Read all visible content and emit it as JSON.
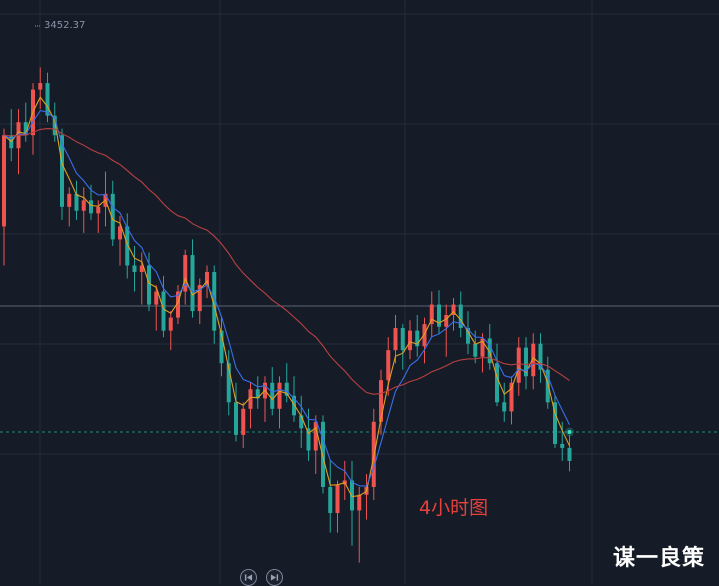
{
  "chart_data": {
    "type": "candlestick",
    "title": "",
    "annotations": {
      "peak_price": "3452.37",
      "timeframe": "4小时图"
    },
    "price_range": [
      3120,
      3470
    ],
    "grid": true,
    "colors": {
      "up": "#ef5350",
      "down": "#26a69a",
      "background": "#151c28",
      "grid": "#232b3a",
      "ma_short": "#e0a020",
      "ma_mid": "#3a6ee8",
      "ma_long": "#b84040",
      "crosshair": "#5a6374",
      "last_price_line": "#1e8a7a"
    },
    "series": [
      {
        "name": "",
        "color": "#e0a020",
        "values": []
      },
      {
        "name": "",
        "color": "#3a6ee8",
        "values": []
      },
      {
        "name": "",
        "color": "#b84040",
        "values": []
      }
    ],
    "candles": [
      [
        3330,
        3405,
        3300,
        3400
      ],
      [
        3400,
        3420,
        3380,
        3390
      ],
      [
        3390,
        3420,
        3370,
        3410
      ],
      [
        3410,
        3425,
        3395,
        3400
      ],
      [
        3400,
        3440,
        3385,
        3435
      ],
      [
        3435,
        3452,
        3420,
        3440
      ],
      [
        3440,
        3448,
        3410,
        3415
      ],
      [
        3415,
        3425,
        3395,
        3400
      ],
      [
        3400,
        3405,
        3335,
        3345
      ],
      [
        3345,
        3360,
        3330,
        3355
      ],
      [
        3355,
        3365,
        3335,
        3342
      ],
      [
        3342,
        3360,
        3325,
        3350
      ],
      [
        3350,
        3362,
        3335,
        3340
      ],
      [
        3340,
        3350,
        3325,
        3345
      ],
      [
        3345,
        3372,
        3330,
        3355
      ],
      [
        3355,
        3365,
        3315,
        3320
      ],
      [
        3320,
        3338,
        3300,
        3330
      ],
      [
        3330,
        3340,
        3290,
        3300
      ],
      [
        3300,
        3315,
        3280,
        3295
      ],
      [
        3295,
        3310,
        3270,
        3300
      ],
      [
        3300,
        3310,
        3265,
        3270
      ],
      [
        3270,
        3285,
        3250,
        3280
      ],
      [
        3280,
        3292,
        3245,
        3250
      ],
      [
        3250,
        3265,
        3235,
        3260
      ],
      [
        3260,
        3285,
        3255,
        3280
      ],
      [
        3280,
        3312,
        3270,
        3308
      ],
      [
        3308,
        3320,
        3260,
        3265
      ],
      [
        3265,
        3290,
        3255,
        3285
      ],
      [
        3285,
        3300,
        3275,
        3295
      ],
      [
        3295,
        3300,
        3240,
        3250
      ],
      [
        3250,
        3260,
        3215,
        3225
      ],
      [
        3225,
        3235,
        3185,
        3195
      ],
      [
        3195,
        3210,
        3165,
        3170
      ],
      [
        3170,
        3195,
        3160,
        3190
      ],
      [
        3190,
        3210,
        3175,
        3205
      ],
      [
        3205,
        3215,
        3190,
        3198
      ],
      [
        3198,
        3215,
        3180,
        3210
      ],
      [
        3210,
        3222,
        3185,
        3190
      ],
      [
        3190,
        3215,
        3175,
        3210
      ],
      [
        3210,
        3225,
        3195,
        3200
      ],
      [
        3200,
        3215,
        3180,
        3185
      ],
      [
        3185,
        3200,
        3160,
        3175
      ],
      [
        3175,
        3190,
        3150,
        3158
      ],
      [
        3158,
        3185,
        3140,
        3180
      ],
      [
        3180,
        3185,
        3125,
        3130
      ],
      [
        3130,
        3150,
        3095,
        3110
      ],
      [
        3110,
        3135,
        3095,
        3132
      ],
      [
        3132,
        3150,
        3120,
        3135
      ],
      [
        3135,
        3150,
        3085,
        3112
      ],
      [
        3112,
        3130,
        3072,
        3124
      ],
      [
        3124,
        3140,
        3105,
        3130
      ],
      [
        3130,
        3190,
        3120,
        3180
      ],
      [
        3180,
        3220,
        3170,
        3212
      ],
      [
        3212,
        3245,
        3200,
        3235
      ],
      [
        3235,
        3262,
        3225,
        3252
      ],
      [
        3252,
        3255,
        3220,
        3235
      ],
      [
        3235,
        3258,
        3228,
        3250
      ],
      [
        3250,
        3262,
        3230,
        3238
      ],
      [
        3238,
        3260,
        3225,
        3255
      ],
      [
        3255,
        3280,
        3245,
        3270
      ],
      [
        3270,
        3281,
        3248,
        3253
      ],
      [
        3253,
        3270,
        3230,
        3262
      ],
      [
        3262,
        3275,
        3250,
        3270
      ],
      [
        3270,
        3280,
        3245,
        3252
      ],
      [
        3252,
        3265,
        3232,
        3240
      ],
      [
        3240,
        3250,
        3225,
        3230
      ],
      [
        3230,
        3248,
        3218,
        3244
      ],
      [
        3244,
        3255,
        3220,
        3225
      ],
      [
        3225,
        3240,
        3192,
        3195
      ],
      [
        3195,
        3210,
        3180,
        3188
      ],
      [
        3188,
        3215,
        3178,
        3210
      ],
      [
        3210,
        3245,
        3200,
        3237
      ],
      [
        3237,
        3245,
        3205,
        3215
      ],
      [
        3215,
        3248,
        3205,
        3240
      ],
      [
        3240,
        3248,
        3210,
        3220
      ],
      [
        3220,
        3230,
        3190,
        3195
      ],
      [
        3195,
        3200,
        3160,
        3163
      ],
      [
        3163,
        3180,
        3150,
        3160
      ],
      [
        3160,
        3170,
        3142,
        3150
      ]
    ]
  },
  "overlay": {
    "peak_label": "3452.37",
    "timeframe_label": "4小时图",
    "watermark": "谋一良策",
    "nav_prev_icon": "skip-back-icon",
    "nav_next_icon": "skip-forward-icon"
  }
}
